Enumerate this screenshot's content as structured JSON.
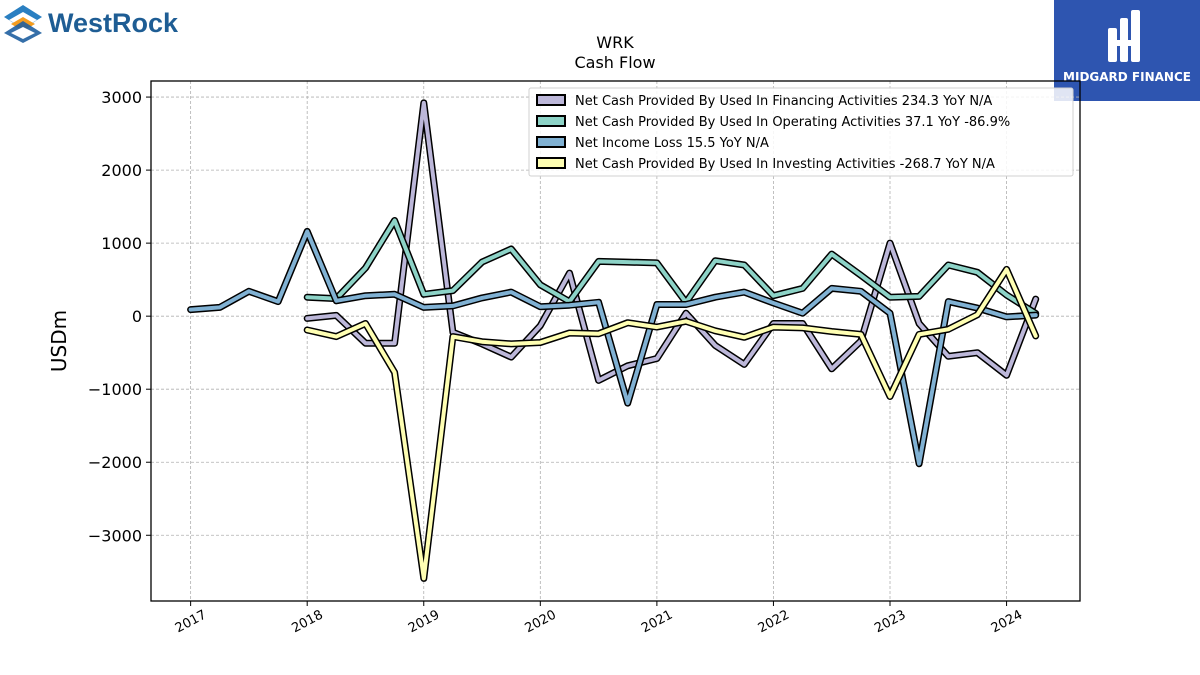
{
  "branding": {
    "company_logo_text": "WestRock",
    "publisher_logo_text": "MIDGARD FINANCE"
  },
  "chart_data": {
    "type": "line",
    "title": "WRK",
    "subtitle": "Cash Flow",
    "xlabel": "",
    "ylabel": "USDm",
    "xlim": [
      2016.66,
      2024.63
    ],
    "ylim": [
      -3900,
      3220
    ],
    "yticks": [
      3000,
      2000,
      1000,
      0,
      -1000,
      -2000,
      -3000
    ],
    "ytick_labels": [
      "3000",
      "2000",
      "1000",
      "0",
      "−1000",
      "−2000",
      "−3000"
    ],
    "xticks": [
      2017,
      2018,
      2019,
      2020,
      2021,
      2022,
      2023,
      2024
    ],
    "xtick_labels": [
      "2017",
      "2018",
      "2019",
      "2020",
      "2021",
      "2022",
      "2023",
      "2024"
    ],
    "grid": true,
    "legend_position": "top-right",
    "series": [
      {
        "name": "Net Cash Provided By Used In Financing Activities  234.3 YoY N/A",
        "color": "#bcb7d9",
        "x": [
          2018.0,
          2018.25,
          2018.5,
          2018.75,
          2019.0,
          2019.25,
          2019.5,
          2019.75,
          2020.0,
          2020.25,
          2020.5,
          2020.75,
          2021.0,
          2021.25,
          2021.5,
          2021.75,
          2022.0,
          2022.25,
          2022.5,
          2022.75,
          2023.0,
          2023.25,
          2023.5,
          2023.75,
          2024.0,
          2024.25
        ],
        "y": [
          -30,
          10,
          -370,
          -370,
          2920,
          -220,
          -380,
          -560,
          -130,
          590,
          -880,
          -680,
          -580,
          40,
          -400,
          -660,
          -100,
          -100,
          -720,
          -340,
          1000,
          -100,
          -550,
          -500,
          -810,
          234
        ]
      },
      {
        "name": "Net Cash Provided By Used In Operating Activities  37.1 YoY -86.9%",
        "color": "#8dd3c7",
        "x": [
          2018.0,
          2018.25,
          2018.5,
          2018.75,
          2019.0,
          2019.25,
          2019.5,
          2019.75,
          2020.0,
          2020.25,
          2020.5,
          2020.75,
          2021.0,
          2021.25,
          2021.5,
          2021.75,
          2022.0,
          2022.25,
          2022.5,
          2022.75,
          2023.0,
          2023.25,
          2023.5,
          2023.75,
          2024.0,
          2024.25
        ],
        "y": [
          260,
          240,
          660,
          1310,
          300,
          350,
          740,
          920,
          430,
          200,
          750,
          740,
          730,
          190,
          760,
          700,
          280,
          380,
          850,
          560,
          260,
          270,
          700,
          600,
          290,
          37
        ]
      },
      {
        "name": "Net Income Loss  15.5 YoY N/A",
        "color": "#80b1d3",
        "x": [
          2017.0,
          2017.25,
          2017.5,
          2017.75,
          2018.0,
          2018.25,
          2018.5,
          2018.75,
          2019.0,
          2019.25,
          2019.5,
          2019.75,
          2020.0,
          2020.25,
          2020.5,
          2020.75,
          2021.0,
          2021.25,
          2021.5,
          2021.75,
          2022.0,
          2022.25,
          2022.5,
          2022.75,
          2023.0,
          2023.25,
          2023.5,
          2023.75,
          2024.0,
          2024.25
        ],
        "y": [
          90,
          120,
          340,
          200,
          1160,
          210,
          280,
          300,
          120,
          140,
          250,
          330,
          130,
          150,
          190,
          -1190,
          160,
          160,
          260,
          330,
          180,
          40,
          380,
          340,
          40,
          -2020,
          200,
          110,
          -10,
          15
        ]
      },
      {
        "name": "Net Cash Provided By Used In Investing Activities  -268.7 YoY N/A",
        "color": "#ffffb3",
        "x": [
          2018.0,
          2018.25,
          2018.5,
          2018.75,
          2019.0,
          2019.25,
          2019.5,
          2019.75,
          2020.0,
          2020.25,
          2020.5,
          2020.75,
          2021.0,
          2021.25,
          2021.5,
          2021.75,
          2022.0,
          2022.25,
          2022.5,
          2022.75,
          2023.0,
          2023.25,
          2023.5,
          2023.75,
          2024.0,
          2024.25
        ],
        "y": [
          -190,
          -280,
          -100,
          -770,
          -3590,
          -280,
          -350,
          -380,
          -360,
          -230,
          -240,
          -90,
          -150,
          -70,
          -200,
          -290,
          -150,
          -160,
          -210,
          -250,
          -1100,
          -250,
          -180,
          20,
          640,
          -270
        ]
      }
    ]
  }
}
